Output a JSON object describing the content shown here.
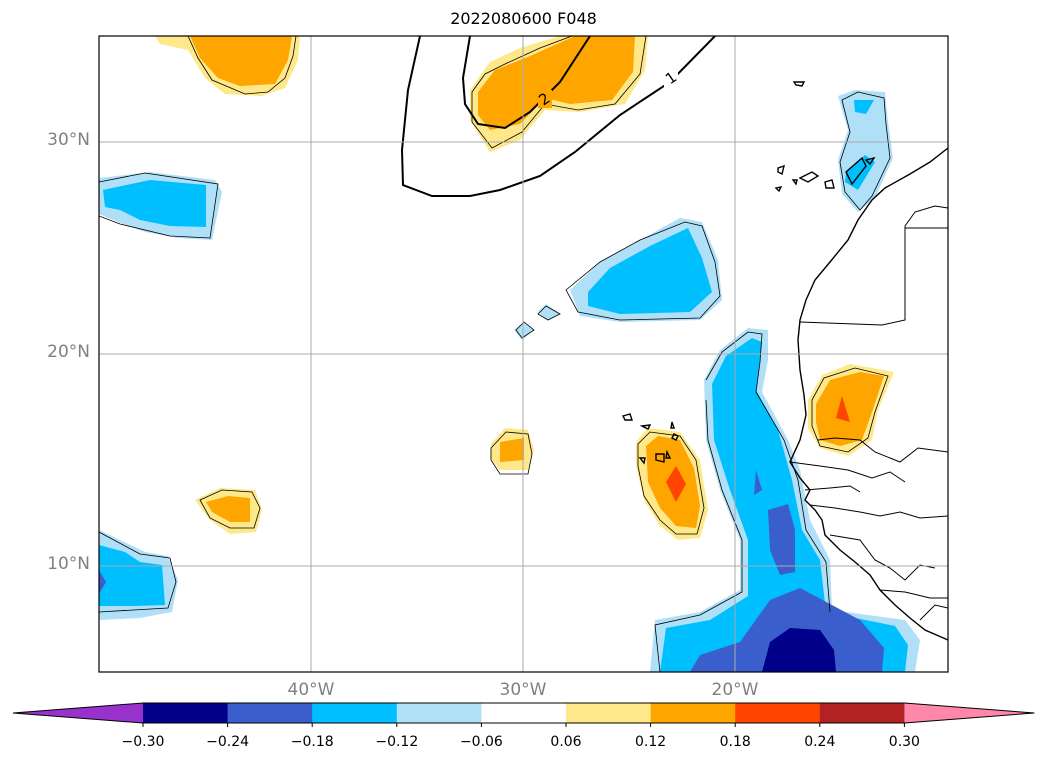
{
  "title": "2022080600 F048",
  "map": {
    "lat_labels": [
      {
        "text": "30°N",
        "lat": 30
      },
      {
        "text": "20°N",
        "lat": 20
      },
      {
        "text": "10°N",
        "lat": 10
      }
    ],
    "lon_labels": [
      {
        "text": "40°W",
        "lon": -40
      },
      {
        "text": "30°W",
        "lon": -30
      },
      {
        "text": "20°W",
        "lon": -20
      }
    ],
    "contour_labels": [
      "1",
      "2"
    ],
    "colors": {
      "light_yellow": "#FFE88A",
      "orange": "#FFA500",
      "red_orange": "#FF4500",
      "light_blue": "#B0E0F8",
      "cyan_blue": "#00BFFF",
      "mid_blue": "#3A5FCD",
      "navy": "#00008B"
    }
  },
  "colorbar": {
    "ticks": [
      "−0.30",
      "−0.24",
      "−0.18",
      "−0.12",
      "−0.06",
      "0.06",
      "0.12",
      "0.18",
      "0.24",
      "0.30"
    ],
    "colors": [
      "#9932CC",
      "#00008B",
      "#3A5FCD",
      "#00BFFF",
      "#B0E0F8",
      "#FFFFFF",
      "#FFE88A",
      "#FFA500",
      "#FF4500",
      "#B22222",
      "#FF88AA",
      "#FF88AA"
    ]
  }
}
